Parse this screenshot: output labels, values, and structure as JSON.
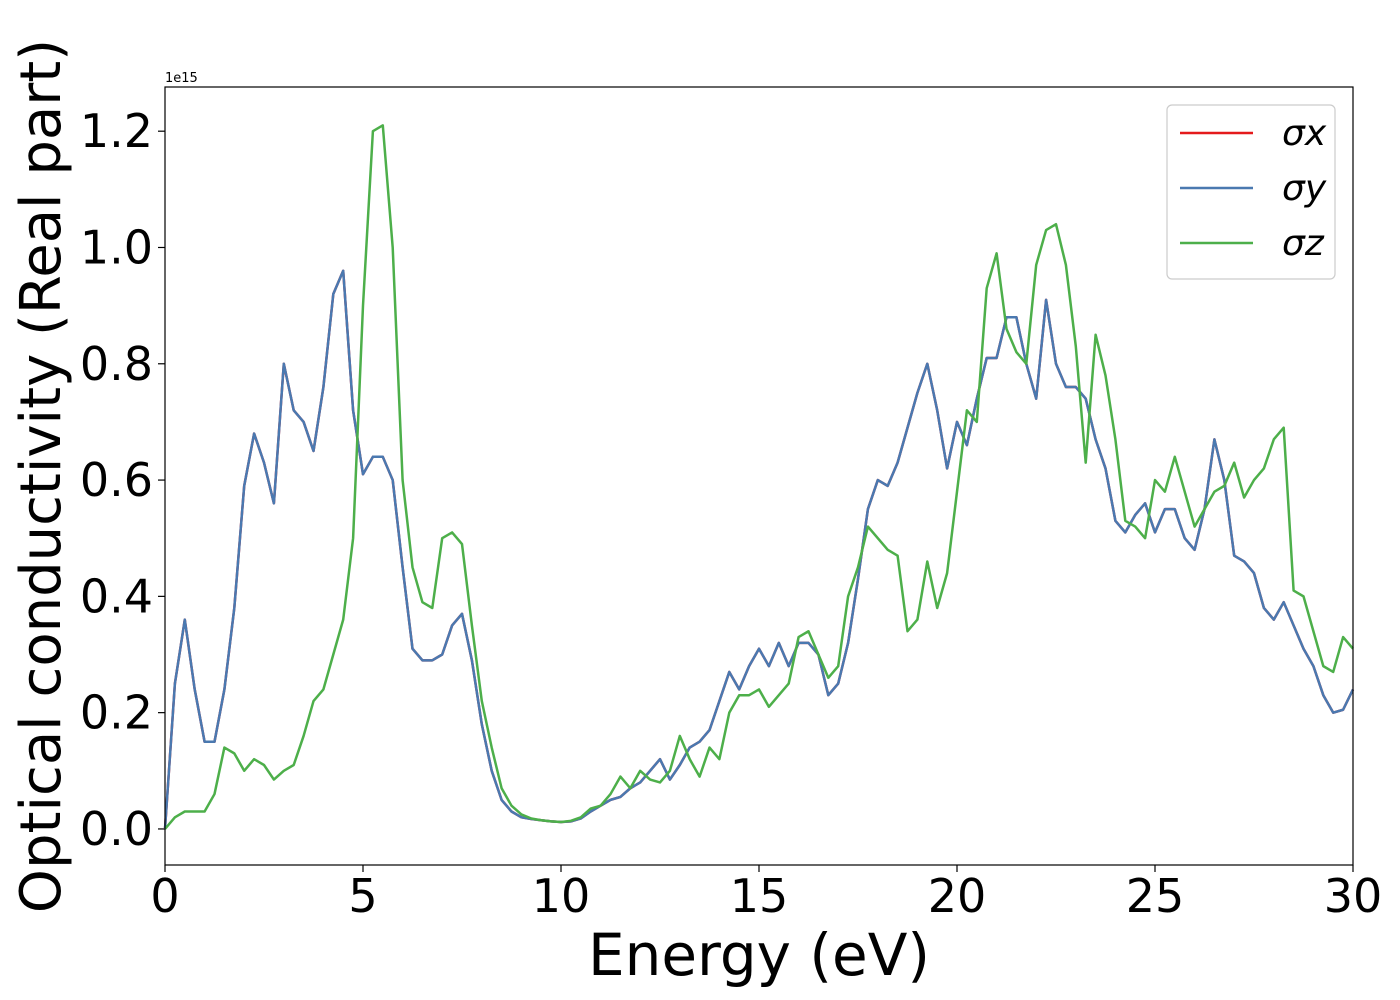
{
  "chart_data": {
    "type": "line",
    "xlabel": "Energy (eV)",
    "ylabel": "Optical conductivity (Real part)",
    "y_offset_text": "1e15",
    "xlim": [
      0,
      30
    ],
    "ylim": [
      -0.062,
      1.276
    ],
    "xticks": [
      0,
      5,
      10,
      15,
      20,
      25,
      30
    ],
    "yticks": [
      {
        "value": 0,
        "label": "0.0"
      },
      0.2,
      0.4,
      0.6,
      0.8,
      {
        "value": 1,
        "label": "1.0"
      },
      1.2
    ],
    "legend": "upper right",
    "x": [
      0,
      0.25,
      0.5,
      0.75,
      1,
      1.25,
      1.5,
      1.75,
      2,
      2.25,
      2.5,
      2.75,
      3,
      3.25,
      3.5,
      3.75,
      4,
      4.25,
      4.5,
      4.75,
      5,
      5.25,
      5.5,
      5.75,
      6,
      6.25,
      6.5,
      6.75,
      7,
      7.25,
      7.5,
      7.75,
      8,
      8.25,
      8.5,
      8.75,
      9,
      9.25,
      9.5,
      9.75,
      10,
      10.25,
      10.5,
      10.75,
      11,
      11.25,
      11.5,
      11.75,
      12,
      12.25,
      12.5,
      12.75,
      13,
      13.25,
      13.5,
      13.75,
      14,
      14.25,
      14.5,
      14.75,
      15,
      15.25,
      15.5,
      15.75,
      16,
      16.25,
      16.5,
      16.75,
      17,
      17.25,
      17.5,
      17.75,
      18,
      18.25,
      18.5,
      18.75,
      19,
      19.25,
      19.5,
      19.75,
      20,
      20.25,
      20.5,
      20.75,
      21,
      21.25,
      21.5,
      21.75,
      22,
      22.25,
      22.5,
      22.75,
      23,
      23.25,
      23.5,
      23.75,
      24,
      24.25,
      24.5,
      24.75,
      25,
      25.25,
      25.5,
      25.75,
      26,
      26.25,
      26.5,
      26.75,
      27,
      27.25,
      27.5,
      27.75,
      28,
      28.25,
      28.5,
      28.75,
      29,
      29.25,
      29.5,
      29.75,
      30
    ],
    "series": [
      {
        "name": "σx",
        "color": "#e41a1c",
        "values": [
          0,
          0.25,
          0.36,
          0.24,
          0.15,
          0.15,
          0.24,
          0.38,
          0.59,
          0.68,
          0.63,
          0.56,
          0.8,
          0.72,
          0.7,
          0.65,
          0.76,
          0.92,
          0.96,
          0.72,
          0.61,
          0.64,
          0.64,
          0.6,
          0.45,
          0.31,
          0.29,
          0.29,
          0.3,
          0.35,
          0.37,
          0.29,
          0.18,
          0.1,
          0.05,
          0.03,
          0.02,
          0.017,
          0.015,
          0.013,
          0.012,
          0.013,
          0.018,
          0.03,
          0.04,
          0.05,
          0.055,
          0.07,
          0.08,
          0.1,
          0.12,
          0.085,
          0.11,
          0.14,
          0.15,
          0.17,
          0.22,
          0.27,
          0.24,
          0.28,
          0.31,
          0.28,
          0.32,
          0.28,
          0.32,
          0.32,
          0.3,
          0.23,
          0.25,
          0.32,
          0.43,
          0.55,
          0.6,
          0.59,
          0.63,
          0.69,
          0.75,
          0.8,
          0.72,
          0.62,
          0.7,
          0.66,
          0.74,
          0.81,
          0.81,
          0.88,
          0.88,
          0.8,
          0.74,
          0.91,
          0.8,
          0.76,
          0.76,
          0.74,
          0.67,
          0.62,
          0.53,
          0.51,
          0.54,
          0.56,
          0.51,
          0.55,
          0.55,
          0.5,
          0.48,
          0.55,
          0.67,
          0.6,
          0.47,
          0.46,
          0.44,
          0.38,
          0.36,
          0.39,
          0.35,
          0.31,
          0.28,
          0.23,
          0.2,
          0.205,
          0.24
        ]
      },
      {
        "name": "σy",
        "color": "#4a79b0",
        "values": [
          0,
          0.25,
          0.36,
          0.24,
          0.15,
          0.15,
          0.24,
          0.38,
          0.59,
          0.68,
          0.63,
          0.56,
          0.8,
          0.72,
          0.7,
          0.65,
          0.76,
          0.92,
          0.96,
          0.72,
          0.61,
          0.64,
          0.64,
          0.6,
          0.45,
          0.31,
          0.29,
          0.29,
          0.3,
          0.35,
          0.37,
          0.29,
          0.18,
          0.1,
          0.05,
          0.03,
          0.02,
          0.017,
          0.015,
          0.013,
          0.012,
          0.013,
          0.018,
          0.03,
          0.04,
          0.05,
          0.055,
          0.07,
          0.08,
          0.1,
          0.12,
          0.085,
          0.11,
          0.14,
          0.15,
          0.17,
          0.22,
          0.27,
          0.24,
          0.28,
          0.31,
          0.28,
          0.32,
          0.28,
          0.32,
          0.32,
          0.3,
          0.23,
          0.25,
          0.32,
          0.43,
          0.55,
          0.6,
          0.59,
          0.63,
          0.69,
          0.75,
          0.8,
          0.72,
          0.62,
          0.7,
          0.66,
          0.74,
          0.81,
          0.81,
          0.88,
          0.88,
          0.8,
          0.74,
          0.91,
          0.8,
          0.76,
          0.76,
          0.74,
          0.67,
          0.62,
          0.53,
          0.51,
          0.54,
          0.56,
          0.51,
          0.55,
          0.55,
          0.5,
          0.48,
          0.55,
          0.67,
          0.6,
          0.47,
          0.46,
          0.44,
          0.38,
          0.36,
          0.39,
          0.35,
          0.31,
          0.28,
          0.23,
          0.2,
          0.205,
          0.24
        ]
      },
      {
        "name": "σz",
        "color": "#4daf4a",
        "values": [
          0,
          0.02,
          0.03,
          0.03,
          0.03,
          0.06,
          0.14,
          0.13,
          0.1,
          0.12,
          0.11,
          0.085,
          0.1,
          0.11,
          0.16,
          0.22,
          0.24,
          0.3,
          0.36,
          0.5,
          0.9,
          1.2,
          1.21,
          1.0,
          0.6,
          0.45,
          0.39,
          0.38,
          0.5,
          0.51,
          0.49,
          0.35,
          0.22,
          0.14,
          0.07,
          0.04,
          0.025,
          0.018,
          0.015,
          0.013,
          0.012,
          0.014,
          0.02,
          0.035,
          0.04,
          0.06,
          0.09,
          0.07,
          0.1,
          0.085,
          0.08,
          0.1,
          0.16,
          0.12,
          0.09,
          0.14,
          0.12,
          0.2,
          0.23,
          0.23,
          0.24,
          0.21,
          0.23,
          0.25,
          0.33,
          0.34,
          0.3,
          0.26,
          0.28,
          0.4,
          0.45,
          0.52,
          0.5,
          0.48,
          0.47,
          0.34,
          0.36,
          0.46,
          0.38,
          0.44,
          0.58,
          0.72,
          0.7,
          0.93,
          0.99,
          0.86,
          0.82,
          0.8,
          0.97,
          1.03,
          1.04,
          0.97,
          0.83,
          0.63,
          0.85,
          0.78,
          0.67,
          0.53,
          0.52,
          0.5,
          0.6,
          0.58,
          0.64,
          0.58,
          0.52,
          0.55,
          0.58,
          0.59,
          0.63,
          0.57,
          0.6,
          0.62,
          0.67,
          0.69,
          0.41,
          0.4,
          0.34,
          0.28,
          0.27,
          0.33,
          0.31
        ]
      }
    ]
  }
}
